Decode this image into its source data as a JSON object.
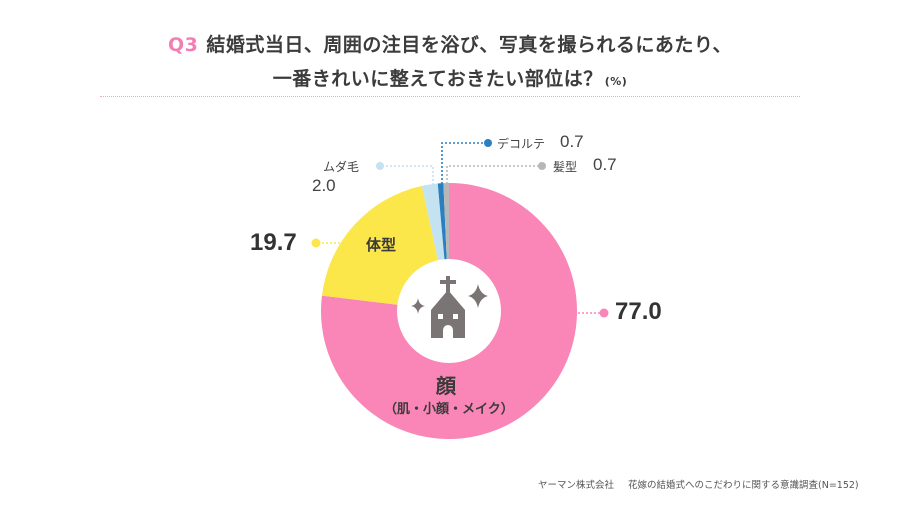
{
  "title": {
    "q_number": "Q3",
    "line1": "結婚式当日、周囲の注目を浴び、写真を撮られるにあたり、",
    "line2": "一番きれいに整えておきたい部位は？",
    "unit": "(%)"
  },
  "chart_data": {
    "type": "pie",
    "variant": "donut",
    "title": "Q3 結婚式当日、周囲の注目を浴び、写真を撮られるにあたり、一番きれいに整えておきたい部位は？(%)",
    "categories": [
      "顔（肌・小顔・メイク）",
      "体型",
      "ムダ毛",
      "デコルテ",
      "髪型"
    ],
    "values": [
      77.0,
      19.7,
      2.0,
      0.7,
      0.7
    ],
    "colors": [
      "#f986b6",
      "#fbe74a",
      "#c3e2f2",
      "#2a7fbf",
      "#b7b7b7"
    ],
    "start_angle": "12 o'clock",
    "direction": "counterclockwise-from-top for small slices; 顔 spans clockwise",
    "center_icon": "church-icon",
    "unit": "%"
  },
  "labels": {
    "face": {
      "name": "顔",
      "sub": "（肌・小顔・メイク）",
      "value": "77.0"
    },
    "body": {
      "name": "体型",
      "value": "19.7"
    },
    "hair_removal": {
      "name": "ムダ毛",
      "value": "2.0"
    },
    "decollete": {
      "name": "デコルテ",
      "value": "0.7"
    },
    "hair": {
      "name": "髪型",
      "value": "0.7"
    }
  },
  "source": {
    "company": "ヤーマン株式会社",
    "survey": "花嫁の結婚式へのこだわりに関する意識調査(N=152)"
  }
}
